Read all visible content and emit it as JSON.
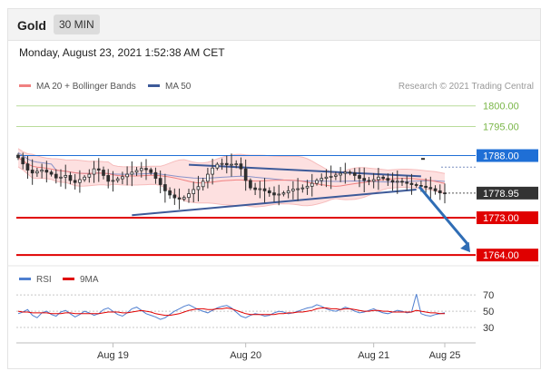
{
  "header": {
    "title": "Gold",
    "timeframe": "30 MIN"
  },
  "datetime": "Monday, August 23, 2021 1:52:38 AM CET",
  "legend": {
    "ma20_label": "MA 20 + Bollinger Bands",
    "ma50_label": "MA 50",
    "copyright": "Research © 2021 Trading Central"
  },
  "colors": {
    "ma20": "#f08080",
    "ma50": "#3d5a99",
    "bollinger_fill": "#fde0e0",
    "candle": "#2f2f2f",
    "resistance": "#e00000",
    "pivot": "#1f6fd6",
    "upper_level": "#7ab648",
    "trendline": "#3d5a99",
    "arrow": "#2f6db5",
    "rsi": "#4f7fd0",
    "rsi_ma": "#e00000"
  },
  "chart_data": [
    {
      "type": "candlestick",
      "title": "Gold",
      "interval": "30 MIN",
      "x_tick_labels": [
        "Aug 19",
        "Aug 20",
        "Aug 21",
        "Aug 25"
      ],
      "levels": [
        {
          "value": 1800.0,
          "label": "1800.00",
          "kind": "resistance-green"
        },
        {
          "value": 1795.0,
          "label": "1795.00",
          "kind": "resistance-green"
        },
        {
          "value": 1788.0,
          "label": "1788.00",
          "kind": "pivot"
        },
        {
          "value": 1778.95,
          "label": "1778.95",
          "kind": "last-price"
        },
        {
          "value": 1773.0,
          "label": "1773.00",
          "kind": "support"
        },
        {
          "value": 1764.0,
          "label": "1764.00",
          "kind": "support"
        }
      ],
      "ylim": [
        1762.5,
        1803
      ],
      "close": [
        1787.5,
        1786.0,
        1784.5,
        1783.8,
        1784.2,
        1784.5,
        1784.0,
        1783.5,
        1782.6,
        1782.8,
        1783.2,
        1782.0,
        1781.5,
        1782.2,
        1782.8,
        1783.5,
        1784.8,
        1784.5,
        1783.2,
        1781.8,
        1782.0,
        1782.4,
        1782.9,
        1783.5,
        1784.0,
        1784.4,
        1784.9,
        1784.6,
        1783.9,
        1782.5,
        1781.0,
        1779.5,
        1778.5,
        1777.8,
        1777.5,
        1777.9,
        1778.8,
        1779.8,
        1780.5,
        1781.8,
        1783.5,
        1785.0,
        1785.9,
        1786.1,
        1785.8,
        1785.9,
        1786.0,
        1784.8,
        1782.0,
        1780.2,
        1779.8,
        1780.0,
        1779.5,
        1779.0,
        1778.5,
        1778.7,
        1779.0,
        1779.5,
        1779.9,
        1780.0,
        1780.2,
        1780.6,
        1781.3,
        1782.0,
        1782.5,
        1782.8,
        1783.0,
        1783.3,
        1783.7,
        1784.0,
        1783.8,
        1783.2,
        1782.5,
        1782.0,
        1781.8,
        1782.2,
        1782.8,
        1782.5,
        1782.0,
        1781.6,
        1781.8,
        1781.6,
        1781.3,
        1781.0,
        1780.8,
        1780.6,
        1780.3,
        1780.0,
        1779.5,
        1779.0,
        1778.95
      ],
      "trendlines": [
        {
          "from": [
            36,
            1785.8
          ],
          "to": [
            85,
            1783.0
          ]
        },
        {
          "from": [
            24,
            1773.6
          ],
          "to": [
            84,
            1779.8
          ]
        }
      ],
      "forecast_arrow": {
        "from": [
          85,
          1780.5
        ],
        "to": [
          90,
          1764.0
        ]
      },
      "series": [
        {
          "name": "MA 20 + Bollinger Bands"
        },
        {
          "name": "MA 50"
        }
      ]
    },
    {
      "type": "line",
      "panel": "rsi",
      "ylim": [
        20,
        78
      ],
      "y_tick_labels": [
        "70",
        "50",
        "30"
      ],
      "series": [
        {
          "name": "RSI",
          "values": [
            47,
            49,
            52,
            45,
            42,
            48,
            50,
            46,
            44,
            49,
            51,
            47,
            43,
            46,
            50,
            48,
            45,
            47,
            52,
            54,
            50,
            46,
            44,
            48,
            53,
            55,
            51,
            47,
            45,
            43,
            40,
            42,
            46,
            50,
            53,
            56,
            58,
            55,
            52,
            50,
            48,
            51,
            54,
            56,
            57,
            54,
            49,
            44,
            42,
            45,
            47,
            46,
            44,
            45,
            48,
            50,
            49,
            47,
            48,
            50,
            52,
            54,
            55,
            58,
            56,
            53,
            51,
            50,
            52,
            55,
            53,
            50,
            48,
            49,
            51,
            53,
            50,
            48,
            47,
            49,
            51,
            50,
            48,
            49,
            71,
            47,
            45,
            44,
            46,
            47,
            48
          ]
        },
        {
          "name": "9MA",
          "values": [
            50,
            49,
            49,
            48,
            48,
            48,
            48,
            47,
            47,
            47,
            48,
            48,
            47,
            47,
            47,
            47,
            47,
            47,
            48,
            49,
            49,
            49,
            48,
            48,
            49,
            50,
            51,
            50,
            49,
            47,
            46,
            45,
            45,
            46,
            47,
            49,
            51,
            52,
            53,
            53,
            52,
            52,
            53,
            53,
            54,
            53,
            51,
            49,
            47,
            46,
            46,
            46,
            46,
            46,
            46,
            47,
            47,
            48,
            48,
            49,
            49,
            50,
            51,
            53,
            54,
            54,
            53,
            53,
            52,
            53,
            53,
            52,
            51,
            50,
            50,
            51,
            51,
            50,
            50,
            49,
            49,
            49,
            49,
            49,
            51,
            50,
            49,
            48,
            48,
            47,
            47
          ]
        }
      ]
    }
  ]
}
